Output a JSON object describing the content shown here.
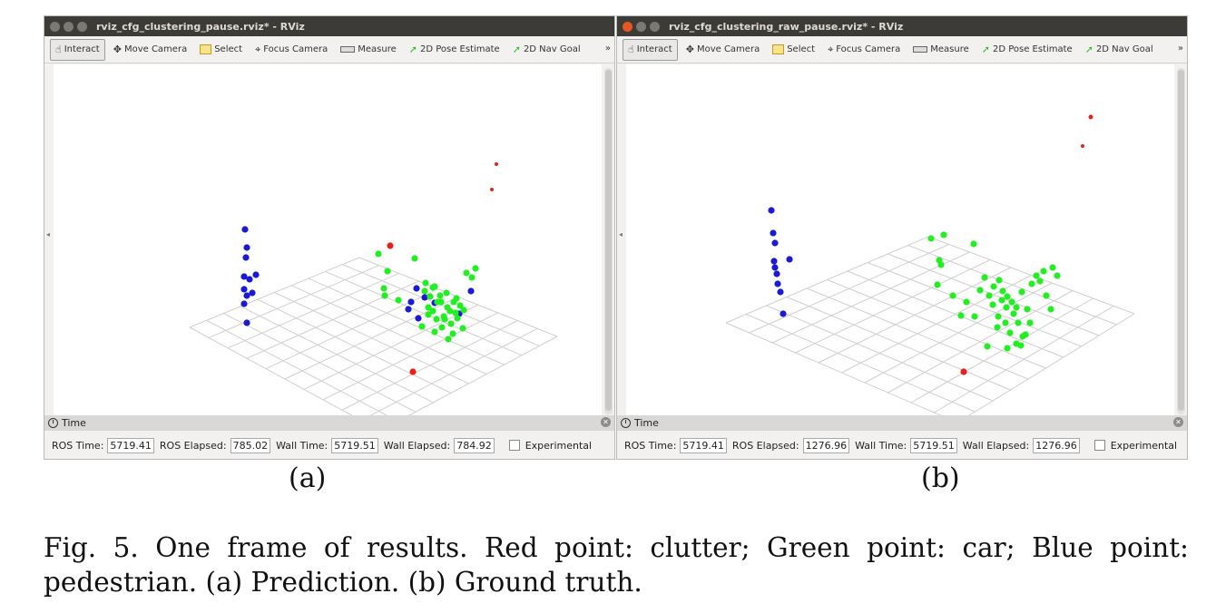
{
  "panels": [
    {
      "title": "rviz_cfg_clustering_pause.rviz* - RViz",
      "close_button_color": "#7a7a74",
      "toolbar": [
        "Interact",
        "Move Camera",
        "Select",
        "Focus Camera",
        "Measure",
        "2D Pose Estimate",
        "2D Nav Goal"
      ],
      "overflow": "»",
      "time_panel": {
        "title": "Time",
        "ros_time_label": "ROS Time:",
        "ros_time": "5719.41",
        "ros_elapsed_label": "ROS Elapsed:",
        "ros_elapsed": "785.02",
        "wall_time_label": "Wall Time:",
        "wall_time": "5719.51",
        "wall_elapsed_label": "Wall Elapsed:",
        "wall_elapsed": "784.92",
        "experimental_label": "Experimental"
      },
      "label": "(a)"
    },
    {
      "title": "rviz_cfg_clustering_raw_pause.rviz* - RViz",
      "close_button_color": "#e8571f",
      "toolbar": [
        "Interact",
        "Move Camera",
        "Select",
        "Focus Camera",
        "Measure",
        "2D Pose Estimate",
        "2D Nav Goal"
      ],
      "overflow": "»",
      "time_panel": {
        "title": "Time",
        "ros_time_label": "ROS Time:",
        "ros_time": "5719.41",
        "ros_elapsed_label": "ROS Elapsed:",
        "ros_elapsed": "1276.96",
        "wall_time_label": "Wall Time:",
        "wall_time": "5719.51",
        "wall_elapsed_label": "Wall Elapsed:",
        "wall_elapsed": "1276.96",
        "experimental_label": "Experimental"
      },
      "label": "(b)"
    }
  ],
  "point_colors": {
    "clutter": "#e8201a",
    "car": "#22ee22",
    "pedestrian": "#1a1ad6"
  },
  "caption": "Fig. 5.  One frame of results. Red point: clutter; Green point: car; Blue point: pedestrian. (a) Prediction. (b) Ground truth."
}
